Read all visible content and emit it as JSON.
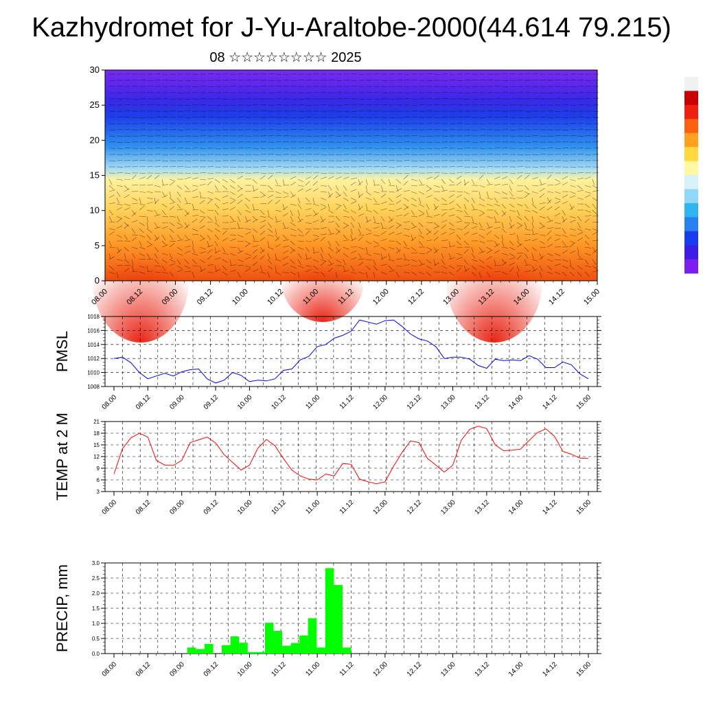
{
  "title": "Kazhydromet for J-Yu-Araltobe-2000(44.614 79.215)",
  "subtitle": "08 ☆☆☆☆☆☆☆☆ 2025",
  "chart_data": [
    {
      "type": "heatmap",
      "description_free": true,
      "ylabel": "",
      "ylim": [
        0,
        30
      ],
      "yticks": [
        0,
        5,
        10,
        15,
        20,
        25,
        30
      ],
      "xticks": [
        "08.00",
        "08.12",
        "09.00",
        "09.12",
        "10.00",
        "10.12",
        "11.00",
        "11.12",
        "12.00",
        "12.12",
        "13.00",
        "13.12",
        "14.00",
        "14.12",
        "15.00"
      ],
      "colorbar_colors": [
        "#7a1ff0",
        "#3c1de8",
        "#1a3cf0",
        "#2a7ff0",
        "#30b4f0",
        "#8fd8f8",
        "#d8f0f8",
        "#fff8a0",
        "#ffd840",
        "#ffa020",
        "#ff6010",
        "#f02010",
        "#c80000",
        "#f0f0f0"
      ],
      "palette": {
        "top": "#7a2af0",
        "blue": "#2030e0",
        "lightblue": "#8ad0f0",
        "yellow": "#fff0a0",
        "orange": "#ffa030",
        "red": "#e82010"
      }
    },
    {
      "type": "line",
      "ylabel": "PMSL",
      "ylim": [
        1008,
        1018
      ],
      "yticks": [
        1008,
        1010,
        1012,
        1014,
        1016,
        1018
      ],
      "xticks": [
        "08.00",
        "08.12",
        "09.00",
        "09.12",
        "10.00",
        "10.12",
        "11.00",
        "11.12",
        "12.00",
        "12.12",
        "13.00",
        "13.12",
        "14.00",
        "14.12",
        "15.00"
      ],
      "color": "#0000ff",
      "values": [
        1012.0,
        1012.2,
        1011.4,
        1010.0,
        1009.1,
        1009.5,
        1009.9,
        1009.5,
        1010.1,
        1010.4,
        1010.5,
        1009.1,
        1008.5,
        1008.9,
        1010.0,
        1009.6,
        1008.7,
        1008.9,
        1008.8,
        1009.1,
        1010.3,
        1010.5,
        1011.8,
        1012.3,
        1013.7,
        1014.0,
        1014.9,
        1015.3,
        1015.9,
        1017.5,
        1017.2,
        1016.9,
        1017.4,
        1017.5,
        1016.6,
        1015.5,
        1014.8,
        1014.5,
        1013.7,
        1012.0,
        1012.2,
        1012.2,
        1011.9,
        1011.0,
        1010.6,
        1011.9,
        1011.7,
        1011.8,
        1011.7,
        1012.4,
        1011.9,
        1010.7,
        1010.7,
        1011.5,
        1011.1,
        1009.8,
        1009.1
      ]
    },
    {
      "type": "line",
      "ylabel": "TEMP at 2 M",
      "ylim": [
        3,
        21
      ],
      "yticks": [
        3,
        6,
        9,
        12,
        15,
        18,
        21
      ],
      "xticks": [
        "08.00",
        "08.12",
        "09.00",
        "09.12",
        "10.00",
        "10.12",
        "11.00",
        "11.12",
        "12.00",
        "12.12",
        "13.00",
        "13.12",
        "14.00",
        "14.12",
        "15.00"
      ],
      "color": "#ff0000",
      "values": [
        7.5,
        14.0,
        16.8,
        18.0,
        17.0,
        11.0,
        9.8,
        9.7,
        11.0,
        15.6,
        16.3,
        17.0,
        15.5,
        12.5,
        10.5,
        8.5,
        9.8,
        14.2,
        16.4,
        14.8,
        11.5,
        8.5,
        7.0,
        6.2,
        6.0,
        7.5,
        7.0,
        10.2,
        10.0,
        6.2,
        5.5,
        5.0,
        5.5,
        9.5,
        13.0,
        16.0,
        15.6,
        11.5,
        9.8,
        8.0,
        9.8,
        16.2,
        19.0,
        19.8,
        19.2,
        15.0,
        13.5,
        13.6,
        13.9,
        16.1,
        18.2,
        19.1,
        17.2,
        13.3,
        12.6,
        11.6,
        11.5
      ]
    },
    {
      "type": "bar",
      "ylabel": "PRECIP, mm",
      "ylim": [
        0,
        3.0
      ],
      "yticks": [
        "0.0",
        "0.5",
        "1.0",
        "1.5",
        "2.0",
        "2.5",
        "3.0"
      ],
      "xticks": [
        "08.00",
        "08.12",
        "09.00",
        "09.12",
        "10.00",
        "10.12",
        "11.00",
        "11.12",
        "12.00",
        "12.12",
        "13.00",
        "13.12",
        "14.00",
        "14.12",
        "15.00"
      ],
      "color": "#00ff00",
      "values": [
        0,
        0,
        0,
        0,
        0,
        0,
        0,
        0,
        0,
        0.2,
        0.15,
        0.32,
        0,
        0.28,
        0.57,
        0.36,
        0.05,
        0.05,
        1.02,
        0.75,
        0.26,
        0.35,
        0.6,
        1.17,
        0.2,
        2.83,
        2.27,
        0.2,
        0,
        0,
        0,
        0,
        0,
        0,
        0,
        0,
        0,
        0,
        0,
        0,
        0,
        0,
        0,
        0,
        0,
        0,
        0,
        0,
        0,
        0,
        0,
        0,
        0,
        0,
        0,
        0
      ]
    }
  ]
}
